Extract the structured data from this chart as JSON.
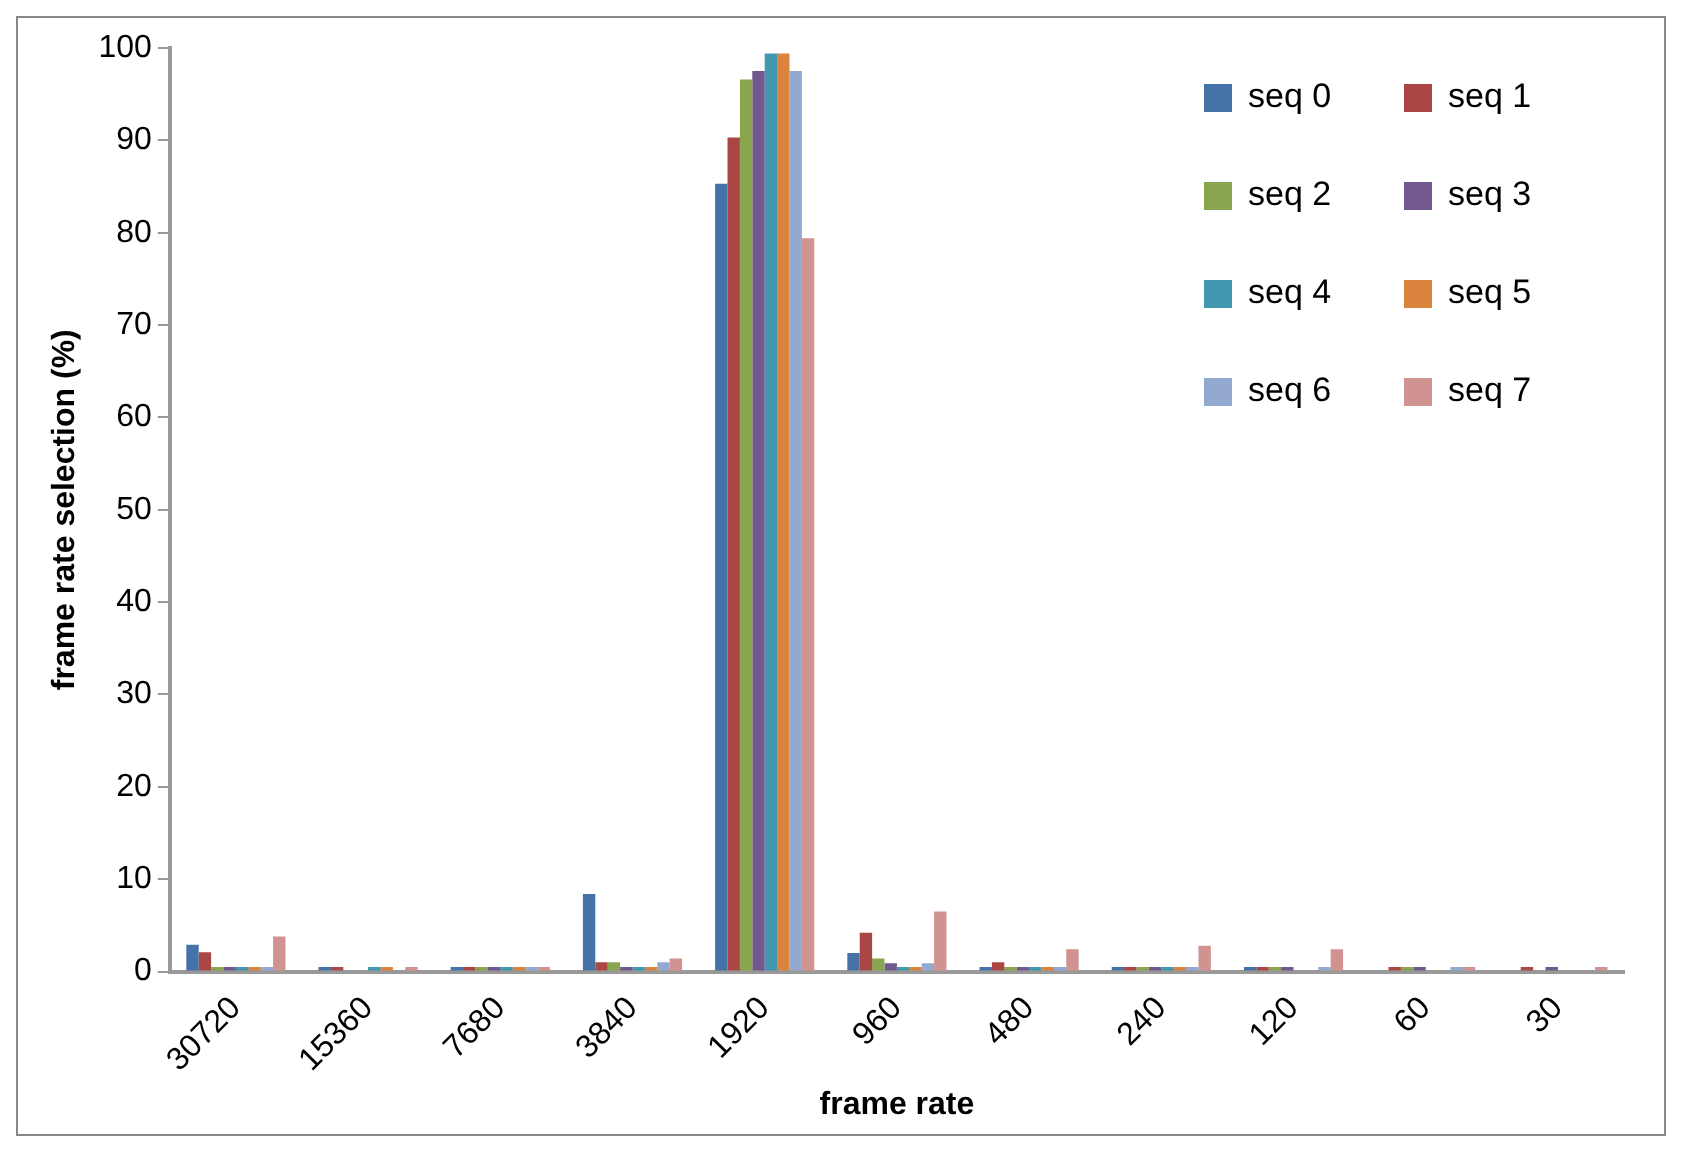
{
  "chart_data": {
    "type": "bar",
    "xlabel": "frame rate",
    "ylabel": "frame rate selection (%)",
    "categories": [
      "30720",
      "15360",
      "7680",
      "3840",
      "1920",
      "960",
      "480",
      "240",
      "120",
      "60",
      "30"
    ],
    "series": [
      {
        "name": "seq 0",
        "color": "#4572a7",
        "values": [
          2.9,
          0.5,
          0.5,
          8.4,
          85.3,
          2.0,
          0.5,
          0.5,
          0.5,
          0,
          0
        ]
      },
      {
        "name": "seq 1",
        "color": "#aa4643",
        "values": [
          2.1,
          0.5,
          0.5,
          1.0,
          90.3,
          4.2,
          1.0,
          0.5,
          0.5,
          0.5,
          0.5
        ]
      },
      {
        "name": "seq 2",
        "color": "#89a54e",
        "values": [
          0.5,
          0,
          0.5,
          1.0,
          96.6,
          1.4,
          0.5,
          0.5,
          0.5,
          0.5,
          0
        ]
      },
      {
        "name": "seq 3",
        "color": "#71588f",
        "values": [
          0.5,
          0,
          0.5,
          0.5,
          97.5,
          0.9,
          0.5,
          0.5,
          0.5,
          0.5,
          0.5
        ]
      },
      {
        "name": "seq 4",
        "color": "#4198af",
        "values": [
          0.5,
          0.5,
          0.5,
          0.5,
          99.4,
          0.5,
          0.5,
          0.5,
          0,
          0,
          0
        ]
      },
      {
        "name": "seq 5",
        "color": "#db843d",
        "values": [
          0.5,
          0.5,
          0.5,
          0.5,
          99.4,
          0.5,
          0.5,
          0.5,
          0,
          0,
          0
        ]
      },
      {
        "name": "seq 6",
        "color": "#93a9cf",
        "values": [
          0.5,
          0,
          0.5,
          1.0,
          97.5,
          0.9,
          0.5,
          0.5,
          0.5,
          0.5,
          0
        ]
      },
      {
        "name": "seq 7",
        "color": "#d19392",
        "values": [
          3.8,
          0.5,
          0.5,
          1.4,
          79.4,
          6.5,
          2.4,
          2.8,
          2.4,
          0.5,
          0.5
        ]
      }
    ],
    "ylim": [
      0,
      100
    ],
    "yticks": [
      0,
      10,
      20,
      30,
      40,
      50,
      60,
      70,
      80,
      90,
      100
    ],
    "grid": false,
    "legend": "top right"
  }
}
